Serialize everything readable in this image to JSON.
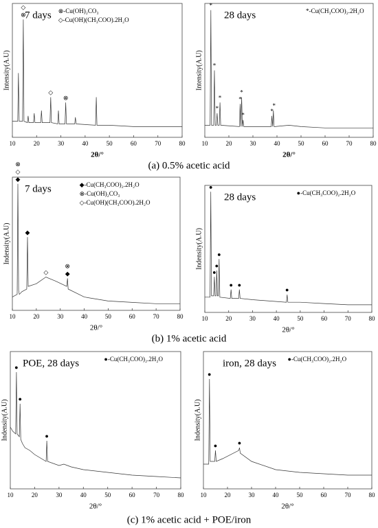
{
  "chart_data": [
    {
      "type": "line",
      "title": "7 days",
      "ylabel": "Intensity(A.U)",
      "xlabel": "2θ/°",
      "legend": [
        "⊗-Cu(OH)₂CO₃",
        "◇-Cu(OH)(CH₃COO).2H₂O"
      ],
      "xlim": [
        10,
        80
      ],
      "xticks": [
        10,
        20,
        30,
        40,
        50,
        60,
        70,
        80
      ],
      "ylim": [
        0,
        100
      ],
      "color": "#333333",
      "x": [
        10,
        12.2,
        12.5,
        12.8,
        14.2,
        14.5,
        14.8,
        16.2,
        16.5,
        16.8,
        18.7,
        19,
        19.3,
        21.7,
        22,
        22.3,
        25.5,
        25.8,
        26.1,
        28.7,
        29,
        29.3,
        31.7,
        32,
        32.3,
        35.7,
        36,
        36.3,
        44.3,
        44.6,
        44.9,
        50,
        60,
        70,
        80
      ],
      "values": [
        12,
        12,
        48,
        12,
        12,
        88,
        12,
        11,
        16,
        11,
        11,
        18,
        11,
        11,
        20,
        11,
        11,
        30,
        11,
        10,
        20,
        10,
        10,
        26,
        10,
        10,
        15,
        10,
        9,
        30,
        9,
        9,
        8,
        8,
        8
      ],
      "peak_markers": [
        {
          "symbol": "⊗",
          "x": 14.5
        },
        {
          "symbol": "◇",
          "x": 14.5
        },
        {
          "symbol": "◇",
          "x": 25.8
        },
        {
          "symbol": "⊗",
          "x": 32
        }
      ]
    },
    {
      "type": "line",
      "title": "28 days",
      "ylabel": "Intensity(A.U)",
      "xlabel": "2θ/°",
      "legend": [
        "*-Cu(CH₃COO)₂.2H₂O"
      ],
      "xlim": [
        10,
        80
      ],
      "xticks": [
        10,
        20,
        30,
        40,
        50,
        60,
        70,
        80
      ],
      "ylim": [
        0,
        100
      ],
      "color": "#333333",
      "x": [
        10,
        12.2,
        12.5,
        12.8,
        13.7,
        14,
        14.3,
        14.8,
        15.1,
        15.4,
        16,
        16.3,
        16.6,
        24.4,
        24.7,
        25,
        25.3,
        25.6,
        25.9,
        26.2,
        37.6,
        37.9,
        38.2,
        38.5,
        38.8,
        39.1,
        45,
        50,
        60,
        70,
        80
      ],
      "values": [
        9,
        9,
        95,
        9,
        9,
        50,
        9,
        9,
        18,
        9,
        9,
        26,
        9,
        8,
        25,
        8,
        30,
        8,
        13,
        8,
        8,
        16,
        8,
        20,
        8,
        8,
        9,
        8,
        7,
        7,
        7
      ],
      "peak_markers": [
        {
          "symbol": "*",
          "x": 12.5
        },
        {
          "symbol": "*",
          "x": 14
        },
        {
          "symbol": "*",
          "x": 15.1
        },
        {
          "symbol": "*",
          "x": 16.3
        },
        {
          "symbol": "*",
          "x": 24.7
        },
        {
          "symbol": "*",
          "x": 25.3
        },
        {
          "symbol": "*",
          "x": 25.9
        },
        {
          "symbol": "*",
          "x": 37.9
        },
        {
          "symbol": "*",
          "x": 38.8
        }
      ]
    },
    {
      "type": "line",
      "title": "7 days",
      "ylabel": "Indensity(A.U)",
      "xlabel": "2θ/°",
      "legend": [
        "◆-Cu(CH₃COO)₂.2H₂O",
        "⊗-Cu(OH)₂CO₃",
        "◇-Cu(OH)(CH₃COO).2H₂O"
      ],
      "xlim": [
        10,
        80
      ],
      "xticks": [
        10,
        20,
        30,
        40,
        50,
        60,
        70,
        80
      ],
      "ylim": [
        0,
        100
      ],
      "color": "#333333",
      "x": [
        10,
        12,
        12.3,
        12.6,
        12.9,
        14,
        16,
        16.3,
        16.6,
        20,
        24,
        28,
        32.7,
        33,
        33.3,
        40,
        50,
        60,
        70,
        80
      ],
      "values": [
        10,
        12,
        95,
        15,
        12,
        14,
        16,
        55,
        18,
        20,
        25,
        22,
        18,
        24,
        16,
        10,
        7,
        6,
        5,
        5
      ],
      "peak_markers": [
        {
          "symbol": "◆",
          "x": 12.3
        },
        {
          "symbol": "◇",
          "x": 12.3
        },
        {
          "symbol": "⊗",
          "x": 12.3
        },
        {
          "symbol": "◆",
          "x": 16.3
        },
        {
          "symbol": "◇",
          "x": 24
        },
        {
          "symbol": "◆",
          "x": 33
        },
        {
          "symbol": "⊗",
          "x": 33
        }
      ]
    },
    {
      "type": "line",
      "title": "28 days",
      "ylabel": "Indensity(A.U)",
      "xlabel": "2θ/°",
      "legend": [
        "●-Cu(CH₃COO)₂.2H₂O"
      ],
      "xlim": [
        10,
        80
      ],
      "xticks": [
        10,
        20,
        30,
        40,
        50,
        60,
        70,
        80
      ],
      "ylim": [
        0,
        100
      ],
      "color": "#333333",
      "x": [
        10,
        12.2,
        12.5,
        12.8,
        13.7,
        14,
        14.3,
        14.7,
        15,
        15.3,
        15.7,
        16,
        16.3,
        20.7,
        21,
        21.3,
        24.2,
        24.5,
        24.8,
        30,
        44.2,
        44.5,
        44.8,
        50,
        60,
        70,
        80
      ],
      "values": [
        12,
        12,
        95,
        13,
        13,
        28,
        13,
        13,
        33,
        13,
        13,
        42,
        12,
        11,
        18,
        11,
        11,
        18,
        11,
        10,
        8,
        14,
        8,
        8,
        7,
        6,
        6
      ],
      "peak_markers": [
        {
          "symbol": "●",
          "x": 12.5
        },
        {
          "symbol": "●",
          "x": 14
        },
        {
          "symbol": "●",
          "x": 15
        },
        {
          "symbol": "●",
          "x": 16
        },
        {
          "symbol": "●",
          "x": 21
        },
        {
          "symbol": "●",
          "x": 24.5
        },
        {
          "symbol": "●",
          "x": 44.5
        }
      ]
    },
    {
      "type": "line",
      "title": "POE, 28 days",
      "ylabel": "Indensity(A.U)",
      "xlabel": "2θ/°",
      "legend": [
        "●-Cu(CH₃COO)₂.2H₂O"
      ],
      "xlim": [
        10,
        80
      ],
      "xticks": [
        10,
        20,
        30,
        40,
        50,
        60,
        70,
        80
      ],
      "ylim": [
        0,
        100
      ],
      "color": "#333333",
      "x": [
        10,
        11,
        12.2,
        12.5,
        12.8,
        13.7,
        14,
        14.3,
        15,
        16,
        18,
        20,
        24.7,
        25,
        25.3,
        30,
        32,
        35,
        40,
        50,
        60,
        70,
        80
      ],
      "values": [
        45,
        42,
        40,
        85,
        40,
        38,
        62,
        36,
        33,
        30,
        28,
        25,
        20,
        35,
        20,
        17,
        18,
        16,
        14,
        12,
        10,
        9,
        8
      ],
      "peak_markers": [
        {
          "symbol": "●",
          "x": 12.5
        },
        {
          "symbol": "●",
          "x": 14
        },
        {
          "symbol": "●",
          "x": 25
        }
      ]
    },
    {
      "type": "line",
      "title": "iron, 28 days",
      "ylabel": "Indensity(A.U)",
      "xlabel": "2θ/°",
      "legend": [
        "●-Cu(CH₃COO)₂.2H₂O"
      ],
      "xlim": [
        10,
        80
      ],
      "xticks": [
        10,
        20,
        30,
        40,
        50,
        60,
        70,
        80
      ],
      "ylim": [
        0,
        100
      ],
      "color": "#333333",
      "x": [
        10,
        12.2,
        12.5,
        12.8,
        14.7,
        15,
        15.3,
        18,
        24.7,
        25,
        25.3,
        30,
        40,
        50,
        60,
        70,
        80
      ],
      "values": [
        18,
        18,
        80,
        20,
        20,
        28,
        20,
        22,
        28,
        30,
        26,
        20,
        14,
        12,
        11,
        10,
        10
      ],
      "peak_markers": [
        {
          "symbol": "●",
          "x": 12.5
        },
        {
          "symbol": "●",
          "x": 15
        },
        {
          "symbol": "●",
          "x": 25
        }
      ]
    }
  ],
  "captions": [
    "(a) 0.5% acetic acid",
    "(b) 1% acetic acid",
    "(c) 1% acetic acid + POE/iron"
  ]
}
